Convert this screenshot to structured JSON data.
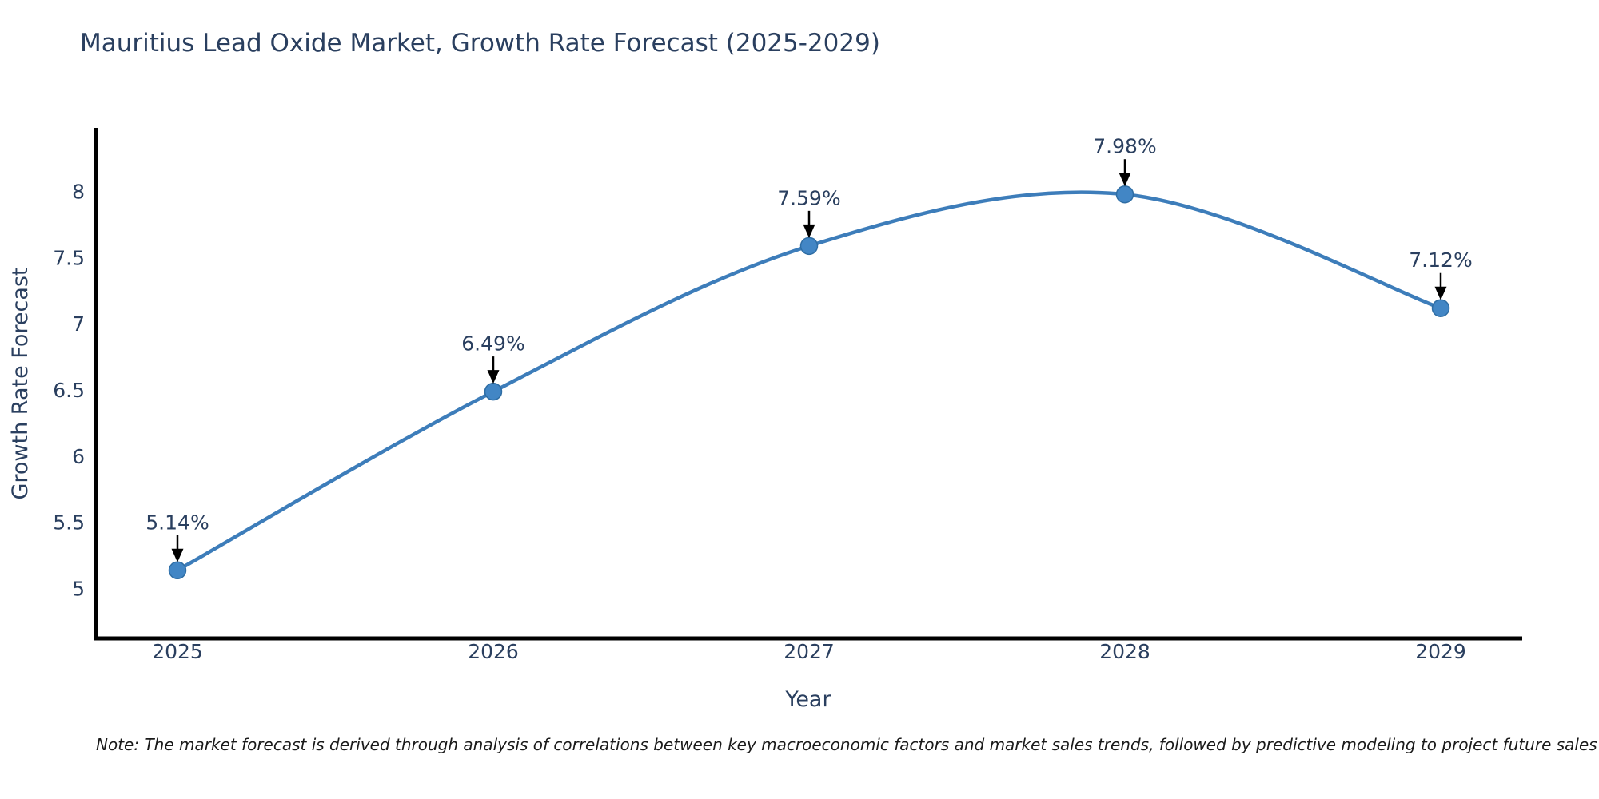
{
  "title": "Mauritius Lead Oxide Market, Growth Rate Forecast (2025-2029)",
  "note": "Note: The market forecast is derived through analysis of correlations between key macroeconomic factors and market sales trends, followed by predictive modeling to project future sales",
  "colors": {
    "title_text": "#2a3f5f",
    "axis_text": "#2a3f5f",
    "axis_line": "#000000",
    "line": "#3d7dba",
    "marker_fill": "#4286c5",
    "marker_edge": "#2e6da4",
    "annotation_text": "#2a3f5f",
    "arrow": "#000000",
    "background": "#ffffff"
  },
  "chart_data": {
    "type": "line",
    "line_shape": "spline",
    "title": "Mauritius Lead Oxide Market, Growth Rate Forecast (2025-2029)",
    "xlabel": "Year",
    "ylabel": "Growth Rate Forecast",
    "x": [
      2025,
      2026,
      2027,
      2028,
      2029
    ],
    "categories": [
      "2025",
      "2026",
      "2027",
      "2028",
      "2029"
    ],
    "values": [
      5.14,
      6.49,
      7.59,
      7.98,
      7.12
    ],
    "point_labels": [
      "5.14%",
      "6.49%",
      "7.59%",
      "7.98%",
      "7.12%"
    ],
    "yticks": [
      5,
      5.5,
      6,
      6.5,
      7,
      7.5,
      8
    ],
    "ylim": [
      4.62,
      8.48
    ],
    "xlim": [
      2024.74,
      2029.26
    ],
    "grid": false,
    "legend": false,
    "markers": true,
    "annotations_arrows": true
  }
}
